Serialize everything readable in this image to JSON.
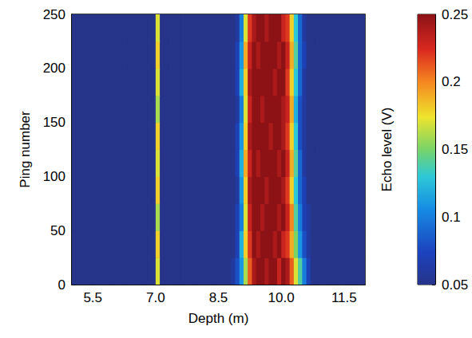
{
  "chart_data": {
    "type": "heatmap",
    "xlabel": "Depth (m)",
    "ylabel": "Ping number",
    "xlim": [
      5,
      12
    ],
    "xticks": [
      5.5,
      {
        "value": 7,
        "label": "7.0"
      },
      8.5,
      {
        "value": 10,
        "label": "10.0"
      },
      11.5
    ],
    "ylim": [
      0,
      250
    ],
    "yticks": [
      0,
      50,
      100,
      150,
      200,
      250
    ],
    "x": [
      5.05,
      5.15,
      5.25,
      5.35,
      5.45,
      5.55,
      5.65,
      5.75,
      5.85,
      5.95,
      6.05,
      6.15,
      6.25,
      6.35,
      6.45,
      6.55,
      6.65,
      6.75,
      6.85,
      6.95,
      7.05,
      7.15,
      7.25,
      7.35,
      7.45,
      7.55,
      7.65,
      7.75,
      7.85,
      7.95,
      8.05,
      8.15,
      8.25,
      8.35,
      8.45,
      8.55,
      8.65,
      8.75,
      8.85,
      8.95,
      9.05,
      9.15,
      9.25,
      9.35,
      9.45,
      9.55,
      9.65,
      9.75,
      9.85,
      9.95,
      10.05,
      10.15,
      10.25,
      10.35,
      10.45,
      10.55,
      10.65,
      10.75,
      10.85,
      10.95,
      11.05,
      11.15,
      11.25,
      11.35,
      11.45,
      11.55,
      11.65,
      11.75,
      11.85,
      11.95
    ],
    "y": [
      12.5,
      37.5,
      62.5,
      87.5,
      112.5,
      137.5,
      162.5,
      187.5,
      212.5,
      237.5
    ],
    "values": [
      [
        0.05,
        0.05,
        0.05,
        0.05,
        0.05,
        0.05,
        0.05,
        0.05,
        0.05,
        0.05,
        0.05,
        0.05,
        0.05,
        0.05,
        0.05,
        0.05,
        0.05,
        0.05,
        0.05,
        0.05,
        0.17,
        0.05,
        0.05,
        0.05,
        0.05,
        0.05,
        0.05,
        0.05,
        0.05,
        0.05,
        0.05,
        0.05,
        0.05,
        0.05,
        0.05,
        0.05,
        0.05,
        0.05,
        0.06,
        0.08,
        0.11,
        0.16,
        0.21,
        0.24,
        0.25,
        0.25,
        0.24,
        0.25,
        0.25,
        0.23,
        0.25,
        0.24,
        0.21,
        0.17,
        0.14,
        0.1,
        0.07,
        0.05,
        0.05,
        0.05,
        0.05,
        0.05,
        0.05,
        0.05,
        0.05,
        0.05,
        0.05,
        0.05,
        0.05,
        0.05
      ],
      [
        0.05,
        0.05,
        0.05,
        0.05,
        0.05,
        0.05,
        0.05,
        0.05,
        0.05,
        0.05,
        0.05,
        0.05,
        0.05,
        0.05,
        0.05,
        0.05,
        0.05,
        0.05,
        0.05,
        0.05,
        0.18,
        0.05,
        0.05,
        0.05,
        0.05,
        0.05,
        0.05,
        0.05,
        0.05,
        0.05,
        0.05,
        0.05,
        0.05,
        0.05,
        0.05,
        0.05,
        0.05,
        0.05,
        0.05,
        0.07,
        0.12,
        0.18,
        0.22,
        0.25,
        0.24,
        0.25,
        0.25,
        0.25,
        0.24,
        0.25,
        0.23,
        0.22,
        0.19,
        0.15,
        0.11,
        0.08,
        0.06,
        0.05,
        0.05,
        0.05,
        0.05,
        0.05,
        0.05,
        0.05,
        0.05,
        0.05,
        0.05,
        0.05,
        0.05,
        0.05
      ],
      [
        0.05,
        0.05,
        0.05,
        0.05,
        0.05,
        0.05,
        0.05,
        0.05,
        0.05,
        0.05,
        0.05,
        0.05,
        0.05,
        0.05,
        0.05,
        0.05,
        0.05,
        0.05,
        0.05,
        0.05,
        0.16,
        0.05,
        0.05,
        0.05,
        0.05,
        0.05,
        0.05,
        0.05,
        0.05,
        0.05,
        0.05,
        0.05,
        0.05,
        0.05,
        0.05,
        0.05,
        0.05,
        0.05,
        0.05,
        0.07,
        0.1,
        0.17,
        0.23,
        0.25,
        0.25,
        0.24,
        0.25,
        0.25,
        0.25,
        0.24,
        0.25,
        0.23,
        0.2,
        0.14,
        0.1,
        0.07,
        0.06,
        0.05,
        0.05,
        0.05,
        0.05,
        0.05,
        0.05,
        0.05,
        0.05,
        0.05,
        0.05,
        0.05,
        0.05,
        0.05
      ],
      [
        0.05,
        0.05,
        0.05,
        0.05,
        0.05,
        0.05,
        0.05,
        0.05,
        0.05,
        0.05,
        0.05,
        0.05,
        0.05,
        0.05,
        0.05,
        0.05,
        0.05,
        0.05,
        0.05,
        0.05,
        0.18,
        0.05,
        0.05,
        0.05,
        0.05,
        0.05,
        0.05,
        0.05,
        0.05,
        0.05,
        0.05,
        0.05,
        0.05,
        0.05,
        0.05,
        0.05,
        0.05,
        0.05,
        0.05,
        0.06,
        0.11,
        0.18,
        0.24,
        0.25,
        0.25,
        0.25,
        0.24,
        0.25,
        0.25,
        0.25,
        0.24,
        0.22,
        0.18,
        0.13,
        0.09,
        0.07,
        0.05,
        0.05,
        0.05,
        0.05,
        0.05,
        0.05,
        0.05,
        0.05,
        0.05,
        0.05,
        0.05,
        0.05,
        0.05,
        0.05
      ],
      [
        0.05,
        0.05,
        0.05,
        0.05,
        0.05,
        0.05,
        0.05,
        0.05,
        0.05,
        0.05,
        0.05,
        0.05,
        0.05,
        0.05,
        0.05,
        0.05,
        0.05,
        0.05,
        0.05,
        0.05,
        0.17,
        0.05,
        0.05,
        0.05,
        0.05,
        0.05,
        0.05,
        0.05,
        0.05,
        0.05,
        0.05,
        0.05,
        0.05,
        0.05,
        0.05,
        0.05,
        0.05,
        0.05,
        0.05,
        0.07,
        0.12,
        0.19,
        0.23,
        0.25,
        0.24,
        0.25,
        0.25,
        0.25,
        0.25,
        0.24,
        0.25,
        0.23,
        0.19,
        0.14,
        0.09,
        0.06,
        0.05,
        0.05,
        0.05,
        0.05,
        0.05,
        0.05,
        0.05,
        0.05,
        0.05,
        0.05,
        0.05,
        0.05,
        0.05,
        0.05
      ],
      [
        0.05,
        0.05,
        0.05,
        0.05,
        0.05,
        0.05,
        0.05,
        0.05,
        0.05,
        0.05,
        0.05,
        0.05,
        0.05,
        0.05,
        0.05,
        0.05,
        0.05,
        0.05,
        0.05,
        0.05,
        0.18,
        0.05,
        0.05,
        0.05,
        0.05,
        0.05,
        0.05,
        0.05,
        0.05,
        0.05,
        0.05,
        0.05,
        0.05,
        0.05,
        0.05,
        0.05,
        0.05,
        0.05,
        0.05,
        0.07,
        0.11,
        0.18,
        0.24,
        0.25,
        0.25,
        0.25,
        0.25,
        0.24,
        0.25,
        0.25,
        0.24,
        0.22,
        0.18,
        0.13,
        0.08,
        0.06,
        0.05,
        0.05,
        0.05,
        0.05,
        0.05,
        0.05,
        0.05,
        0.05,
        0.05,
        0.05,
        0.05,
        0.05,
        0.05,
        0.05
      ],
      [
        0.05,
        0.05,
        0.05,
        0.05,
        0.05,
        0.05,
        0.05,
        0.05,
        0.05,
        0.05,
        0.05,
        0.05,
        0.05,
        0.05,
        0.05,
        0.05,
        0.05,
        0.05,
        0.05,
        0.05,
        0.16,
        0.05,
        0.05,
        0.05,
        0.05,
        0.05,
        0.05,
        0.05,
        0.05,
        0.05,
        0.05,
        0.05,
        0.05,
        0.05,
        0.05,
        0.05,
        0.05,
        0.05,
        0.05,
        0.06,
        0.1,
        0.17,
        0.23,
        0.25,
        0.25,
        0.24,
        0.25,
        0.25,
        0.25,
        0.25,
        0.24,
        0.23,
        0.19,
        0.12,
        0.08,
        0.06,
        0.05,
        0.05,
        0.05,
        0.05,
        0.05,
        0.05,
        0.05,
        0.05,
        0.05,
        0.05,
        0.05,
        0.05,
        0.05,
        0.05
      ],
      [
        0.05,
        0.05,
        0.05,
        0.05,
        0.05,
        0.05,
        0.05,
        0.05,
        0.05,
        0.05,
        0.05,
        0.05,
        0.05,
        0.05,
        0.05,
        0.05,
        0.05,
        0.05,
        0.05,
        0.05,
        0.17,
        0.05,
        0.05,
        0.05,
        0.05,
        0.05,
        0.05,
        0.05,
        0.05,
        0.05,
        0.05,
        0.05,
        0.05,
        0.05,
        0.05,
        0.05,
        0.05,
        0.05,
        0.05,
        0.07,
        0.12,
        0.18,
        0.24,
        0.25,
        0.25,
        0.25,
        0.25,
        0.25,
        0.24,
        0.25,
        0.25,
        0.22,
        0.18,
        0.13,
        0.09,
        0.06,
        0.05,
        0.05,
        0.05,
        0.05,
        0.05,
        0.05,
        0.05,
        0.05,
        0.05,
        0.05,
        0.05,
        0.05,
        0.05,
        0.05
      ],
      [
        0.05,
        0.05,
        0.05,
        0.05,
        0.05,
        0.05,
        0.05,
        0.05,
        0.05,
        0.05,
        0.05,
        0.05,
        0.05,
        0.05,
        0.05,
        0.05,
        0.05,
        0.05,
        0.05,
        0.05,
        0.18,
        0.05,
        0.05,
        0.05,
        0.05,
        0.05,
        0.05,
        0.05,
        0.05,
        0.05,
        0.05,
        0.05,
        0.05,
        0.05,
        0.05,
        0.05,
        0.05,
        0.05,
        0.05,
        0.07,
        0.11,
        0.19,
        0.23,
        0.25,
        0.24,
        0.25,
        0.25,
        0.25,
        0.25,
        0.24,
        0.25,
        0.23,
        0.19,
        0.14,
        0.09,
        0.07,
        0.05,
        0.05,
        0.05,
        0.05,
        0.05,
        0.05,
        0.05,
        0.05,
        0.05,
        0.05,
        0.05,
        0.05,
        0.05,
        0.05
      ],
      [
        0.05,
        0.05,
        0.05,
        0.05,
        0.05,
        0.05,
        0.05,
        0.05,
        0.05,
        0.05,
        0.05,
        0.05,
        0.05,
        0.05,
        0.05,
        0.05,
        0.05,
        0.05,
        0.05,
        0.05,
        0.17,
        0.05,
        0.05,
        0.05,
        0.05,
        0.05,
        0.05,
        0.05,
        0.05,
        0.05,
        0.05,
        0.05,
        0.05,
        0.05,
        0.05,
        0.05,
        0.05,
        0.05,
        0.05,
        0.06,
        0.1,
        0.17,
        0.22,
        0.24,
        0.25,
        0.25,
        0.24,
        0.25,
        0.25,
        0.25,
        0.23,
        0.22,
        0.18,
        0.13,
        0.09,
        0.06,
        0.05,
        0.05,
        0.05,
        0.05,
        0.05,
        0.05,
        0.05,
        0.05,
        0.05,
        0.05,
        0.05,
        0.05,
        0.05,
        0.05
      ]
    ],
    "colorbar_label": "Echo level (V)",
    "colorbar_lim": [
      0.05,
      0.25
    ],
    "colorbar_ticks": [
      0.05,
      0.1,
      0.15,
      0.2,
      0.25
    ]
  }
}
